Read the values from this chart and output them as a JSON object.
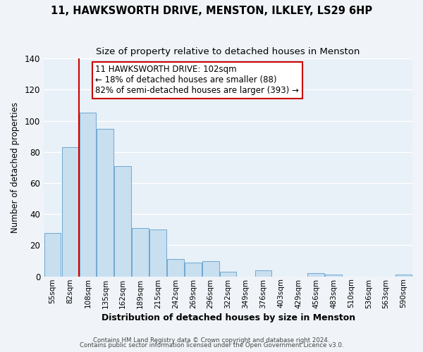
{
  "title1": "11, HAWKSWORTH DRIVE, MENSTON, ILKLEY, LS29 6HP",
  "title2": "Size of property relative to detached houses in Menston",
  "xlabel": "Distribution of detached houses by size in Menston",
  "ylabel": "Number of detached properties",
  "categories": [
    "55sqm",
    "82sqm",
    "108sqm",
    "135sqm",
    "162sqm",
    "189sqm",
    "215sqm",
    "242sqm",
    "269sqm",
    "296sqm",
    "322sqm",
    "349sqm",
    "376sqm",
    "403sqm",
    "429sqm",
    "456sqm",
    "483sqm",
    "510sqm",
    "536sqm",
    "563sqm",
    "590sqm"
  ],
  "values": [
    28,
    83,
    105,
    95,
    71,
    31,
    30,
    11,
    9,
    10,
    3,
    0,
    4,
    0,
    0,
    2,
    1,
    0,
    0,
    0,
    1
  ],
  "bar_color": "#c8dff0",
  "bar_edge_color": "#6fa8d0",
  "vline_color": "#cc0000",
  "vline_x_index": 1.5,
  "annotation_text_line1": "11 HAWKSWORTH DRIVE: 102sqm",
  "annotation_text_line2": "← 18% of detached houses are smaller (88)",
  "annotation_text_line3": "82% of semi-detached houses are larger (393) →",
  "ylim": [
    0,
    140
  ],
  "yticks": [
    0,
    20,
    40,
    60,
    80,
    100,
    120,
    140
  ],
  "footer1": "Contains HM Land Registry data © Crown copyright and database right 2024.",
  "footer2": "Contains public sector information licensed under the Open Government Licence v3.0.",
  "bg_color": "#f0f4f8",
  "plot_bg_color": "#e8f0f8",
  "grid_color": "#ffffff",
  "annotation_fontsize": 8.5,
  "title1_fontsize": 10.5,
  "title2_fontsize": 9.5
}
